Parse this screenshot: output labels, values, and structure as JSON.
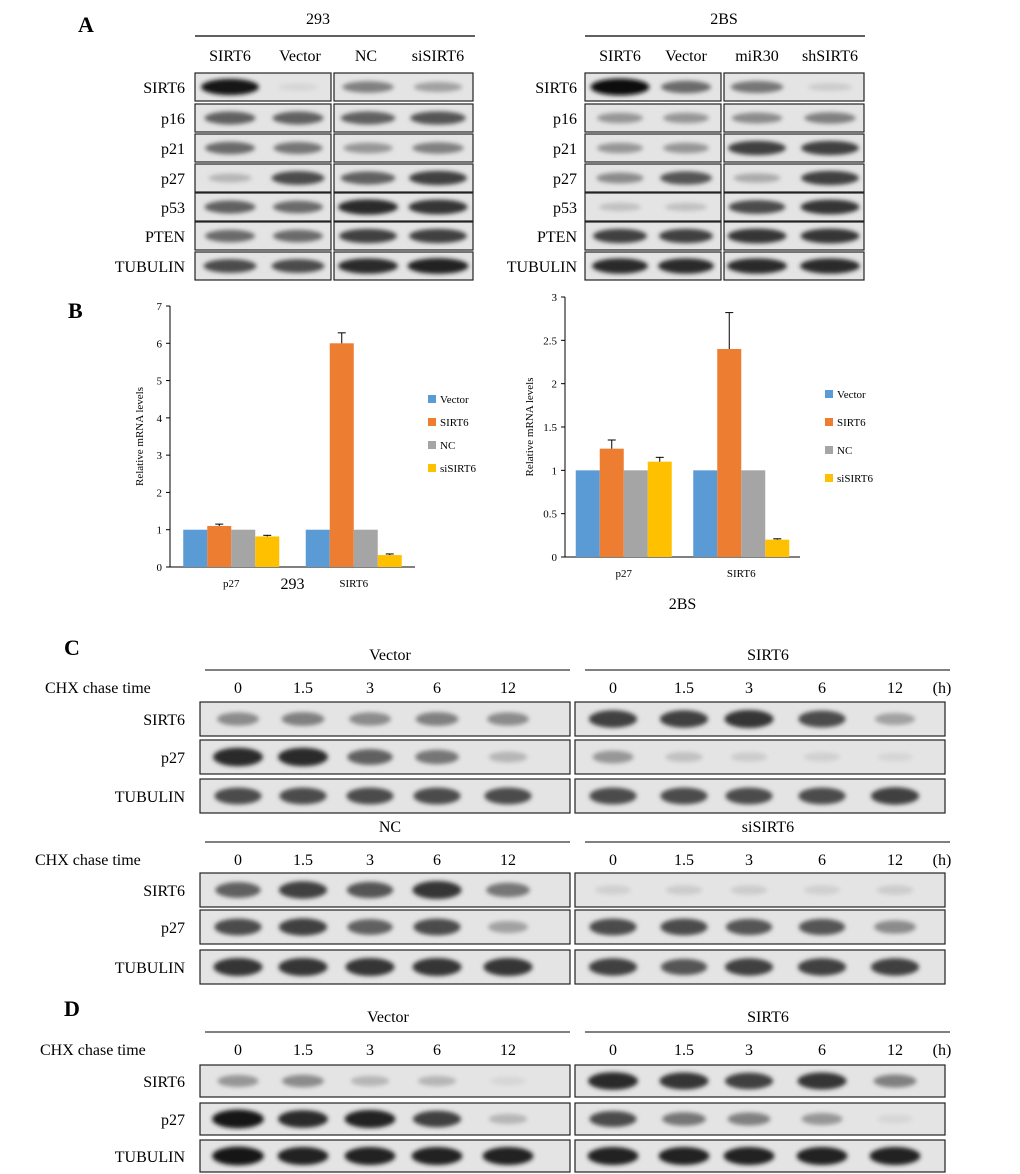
{
  "panels": {
    "A": {
      "letter": "A",
      "left": {
        "title": "293",
        "lanes": [
          "SIRT6",
          "Vector",
          "NC",
          "siSIRT6"
        ],
        "rows": [
          "SIRT6",
          "p16",
          "p21",
          "p27",
          "p53",
          "PTEN",
          "TUBULIN"
        ]
      },
      "right": {
        "title": "2BS",
        "lanes": [
          "SIRT6",
          "Vector",
          "miR30",
          "shSIRT6"
        ],
        "rows": [
          "SIRT6",
          "p16",
          "p21",
          "p27",
          "p53",
          "PTEN",
          "TUBULIN"
        ]
      }
    },
    "B": {
      "letter": "B"
    },
    "C": {
      "letter": "C",
      "top": {
        "row_header": "CHX chase time",
        "left_title": "Vector",
        "right_title": "SIRT6",
        "times": [
          "0",
          "1.5",
          "3",
          "6",
          "12"
        ],
        "unit": "(h)",
        "rows": [
          "SIRT6",
          "p27",
          "TUBULIN"
        ]
      },
      "bottom": {
        "row_header": "CHX chase time",
        "left_title": "NC",
        "right_title": "siSIRT6",
        "times": [
          "0",
          "1.5",
          "3",
          "6",
          "12"
        ],
        "unit": "(h)",
        "rows": [
          "SIRT6",
          "p27",
          "TUBULIN"
        ]
      }
    },
    "D": {
      "letter": "D",
      "row_header": "CHX chase time",
      "left_title": "Vector",
      "right_title": "SIRT6",
      "times": [
        "0",
        "1.5",
        "3",
        "6",
        "12"
      ],
      "unit": "(h)",
      "rows": [
        "SIRT6",
        "p27",
        "TUBULIN"
      ]
    }
  },
  "blot_data": {
    "A_293_left_SIRT6_Vector": [
      [
        0.95,
        0.05
      ],
      [
        0.6,
        0.6
      ],
      [
        0.55,
        0.5
      ],
      [
        0.2,
        0.7
      ],
      [
        0.6,
        0.55
      ],
      [
        0.55,
        0.55
      ],
      [
        0.7,
        0.7
      ]
    ],
    "A_293_right_NC_siSIRT6": [
      [
        0.45,
        0.3
      ],
      [
        0.6,
        0.65
      ],
      [
        0.35,
        0.45
      ],
      [
        0.6,
        0.75
      ],
      [
        0.85,
        0.8
      ],
      [
        0.75,
        0.75
      ],
      [
        0.85,
        0.9
      ]
    ],
    "A_2BS_left_SIRT6_Vector": [
      [
        1.0,
        0.55
      ],
      [
        0.35,
        0.35
      ],
      [
        0.35,
        0.35
      ],
      [
        0.4,
        0.65
      ],
      [
        0.15,
        0.15
      ],
      [
        0.75,
        0.75
      ],
      [
        0.85,
        0.85
      ]
    ],
    "A_2BS_right_miR30_shSIRT6": [
      [
        0.5,
        0.1
      ],
      [
        0.4,
        0.45
      ],
      [
        0.75,
        0.75
      ],
      [
        0.25,
        0.75
      ],
      [
        0.7,
        0.8
      ],
      [
        0.8,
        0.8
      ],
      [
        0.85,
        0.85
      ]
    ],
    "C_Vector": [
      [
        0.4,
        0.45,
        0.4,
        0.45,
        0.4
      ],
      [
        0.85,
        0.85,
        0.6,
        0.5,
        0.2
      ],
      [
        0.7,
        0.7,
        0.7,
        0.7,
        0.7
      ]
    ],
    "C_SIRT6": [
      [
        0.75,
        0.75,
        0.8,
        0.7,
        0.3
      ],
      [
        0.35,
        0.15,
        0.1,
        0.08,
        0.05
      ],
      [
        0.7,
        0.7,
        0.7,
        0.7,
        0.75
      ]
    ],
    "C_NC": [
      [
        0.6,
        0.75,
        0.65,
        0.8,
        0.5
      ],
      [
        0.7,
        0.75,
        0.6,
        0.7,
        0.3
      ],
      [
        0.8,
        0.8,
        0.8,
        0.8,
        0.8
      ]
    ],
    "C_siSIRT6": [
      [
        0.08,
        0.1,
        0.1,
        0.08,
        0.1
      ],
      [
        0.7,
        0.7,
        0.65,
        0.65,
        0.4
      ],
      [
        0.75,
        0.65,
        0.75,
        0.75,
        0.75
      ]
    ],
    "D_Vector": [
      [
        0.35,
        0.4,
        0.2,
        0.2,
        0.05
      ],
      [
        0.95,
        0.85,
        0.9,
        0.75,
        0.2
      ],
      [
        0.95,
        0.9,
        0.9,
        0.9,
        0.9
      ]
    ],
    "D_SIRT6": [
      [
        0.85,
        0.8,
        0.75,
        0.8,
        0.45
      ],
      [
        0.7,
        0.5,
        0.45,
        0.35,
        0.05
      ],
      [
        0.9,
        0.9,
        0.9,
        0.9,
        0.9
      ]
    ]
  },
  "chart_data": [
    {
      "type": "bar",
      "title": "293",
      "xlabel": "",
      "ylabel": "Relative mRNA levels",
      "ylim": [
        0,
        7
      ],
      "yticks": [
        "0",
        "1",
        "2",
        "3",
        "4",
        "5",
        "6",
        "7"
      ],
      "categories": [
        "p27",
        "SIRT6"
      ],
      "series": [
        {
          "name": "Vector",
          "color": "#5B9BD5",
          "values": [
            1.0,
            1.0
          ],
          "errors": [
            0,
            0
          ]
        },
        {
          "name": "SIRT6",
          "color": "#ED7D31",
          "values": [
            1.1,
            6.0
          ],
          "errors": [
            0.05,
            0.28
          ]
        },
        {
          "name": "NC",
          "color": "#A5A5A5",
          "values": [
            1.0,
            1.0
          ],
          "errors": [
            0,
            0
          ]
        },
        {
          "name": "siSIRT6",
          "color": "#FFC000",
          "values": [
            0.82,
            0.32
          ],
          "errors": [
            0.03,
            0.03
          ]
        }
      ],
      "legend": "right"
    },
    {
      "type": "bar",
      "title": "2BS",
      "xlabel": "",
      "ylabel": "Relative mRNA levels",
      "ylim": [
        0,
        3
      ],
      "yticks": [
        "0",
        "0.5",
        "1",
        "1.5",
        "2",
        "2.5",
        "3"
      ],
      "categories": [
        "p27",
        "SIRT6"
      ],
      "series": [
        {
          "name": "Vector",
          "color": "#5B9BD5",
          "values": [
            1.0,
            1.0
          ],
          "errors": [
            0,
            0
          ]
        },
        {
          "name": "SIRT6",
          "color": "#ED7D31",
          "values": [
            1.25,
            2.4
          ],
          "errors": [
            0.1,
            0.42
          ]
        },
        {
          "name": "NC",
          "color": "#A5A5A5",
          "values": [
            1.0,
            1.0
          ],
          "errors": [
            0,
            0
          ]
        },
        {
          "name": "siSIRT6",
          "color": "#FFC000",
          "values": [
            1.1,
            0.2
          ],
          "errors": [
            0.05,
            0.01
          ]
        }
      ],
      "legend": "right"
    }
  ]
}
